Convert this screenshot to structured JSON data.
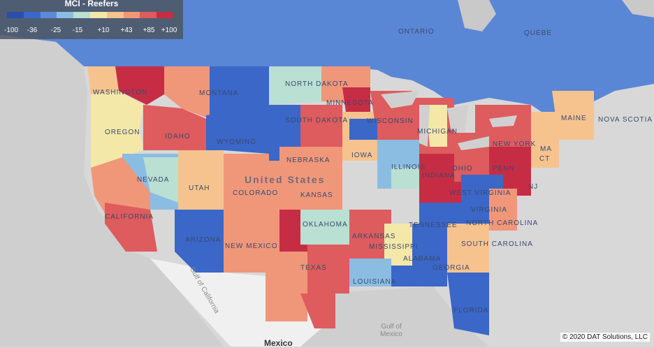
{
  "legend": {
    "title": "MCI - Reefers",
    "colors": [
      "#2b4fa8",
      "#3a67c8",
      "#5d8ad8",
      "#8bbde3",
      "#b9e0d2",
      "#f4e8a8",
      "#f6c38f",
      "#f0977a",
      "#de5b5e",
      "#c62d44"
    ],
    "ticks": [
      "-100",
      "-36",
      "-25",
      "-15",
      "+10",
      "+43",
      "+85",
      "+100"
    ]
  },
  "labels": {
    "ontario": "ONTARIO",
    "quebec": "QUEBE",
    "washington": "WASHINGTON",
    "montana": "MONTANA",
    "north_dakota": "NORTH DAKOTA",
    "minnesota": "MINNESOTA",
    "oregon": "OREGON",
    "idaho": "IDAHO",
    "south_dakota": "SOUTH DAKOTA",
    "wyoming": "WYOMING",
    "wisconsin": "WISCONSIN",
    "michigan": "MICHIGAN",
    "maine": "MAINE",
    "nova_scotia": "NOVA SCOTIA",
    "nevada": "NEVADA",
    "utah": "UTAH",
    "colorado": "COLORADO",
    "nebraska": "NEBRASKA",
    "iowa": "IOWA",
    "illinois": "ILLINOIS",
    "indiana": "INDIANA",
    "ohio": "OHIO",
    "pennsylvania": "PENN",
    "new_york": "NEW YORK",
    "kansas": "KANSAS",
    "west_virginia": "WEST VIRGINIA",
    "virginia": "VIRGINIA",
    "nj": "NJ",
    "ma": "MA",
    "ct": "CT",
    "california": "CALIFORNIA",
    "arizona": "ARIZONA",
    "new_mexico": "NEW MEXICO",
    "oklahoma": "OKLAHOMA",
    "arkansas": "ARKANSAS",
    "tennessee": "TENNESSEE",
    "north_carolina": "NORTH CAROLINA",
    "south_carolina": "SOUTH CAROLINA",
    "mississippi": "MISSISSIPPI",
    "alabama": "ALABAMA",
    "georgia": "GEORGIA",
    "texas": "TEXAS",
    "louisiana": "LOUISIANA",
    "florida": "FLORIDA",
    "united_states": "United States",
    "gulf_of_california": "Gulf of California",
    "gulf_of_mexico": "Gulf of Mexico",
    "mexico": "Mexico"
  },
  "copyright": "© 2020 DAT Solutions, LLC"
}
